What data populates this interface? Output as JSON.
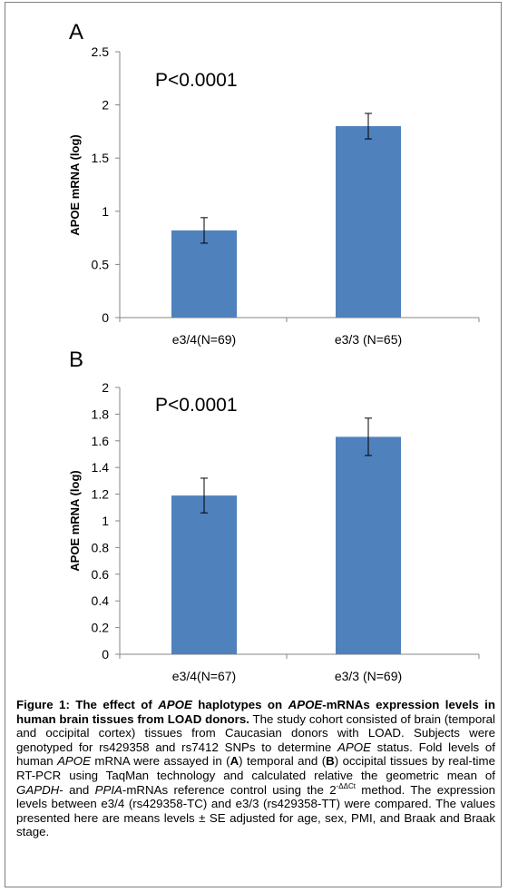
{
  "chart_data": [
    {
      "type": "bar",
      "panel_label": "A",
      "annotation": "P<0.0001",
      "ylabel": "APOE mRNA (log)",
      "xlabel": "",
      "ylim": [
        0,
        2.5
      ],
      "yticks": [
        0,
        0.5,
        1,
        1.5,
        2,
        2.5
      ],
      "ytick_labels": [
        "0",
        "0.5",
        "1",
        "1.5",
        "2",
        "2.5"
      ],
      "categories": [
        "e3/4(N=69)",
        "e3/3 (N=65)"
      ],
      "values": [
        0.82,
        1.8
      ],
      "errors": [
        0.12,
        0.12
      ],
      "bar_color": "#4f81bd",
      "grid": false,
      "legend": "none"
    },
    {
      "type": "bar",
      "panel_label": "B",
      "annotation": "P<0.0001",
      "ylabel": "APOE mRNA (log)",
      "xlabel": "",
      "ylim": [
        0,
        2
      ],
      "yticks": [
        0,
        0.2,
        0.4,
        0.6,
        0.8,
        1,
        1.2,
        1.4,
        1.6,
        1.8,
        2
      ],
      "ytick_labels": [
        "0",
        "0.2",
        "0.4",
        "0.6",
        "0.8",
        "1",
        "1.2",
        "1.4",
        "1.6",
        "1.8",
        "2"
      ],
      "categories": [
        "e3/4(N=67)",
        "e3/3 (N=69)"
      ],
      "values": [
        1.19,
        1.63
      ],
      "errors": [
        0.13,
        0.14
      ],
      "bar_color": "#4f81bd",
      "grid": false,
      "legend": "none"
    }
  ],
  "caption": {
    "title_part1": "Figure 1: The effect of ",
    "title_gene1": "APOE",
    "title_part2": " haplotypes on ",
    "title_gene2": "APOE",
    "title_part3": "-mRNAs expression levels in human brain tissues from LOAD donors.",
    "s1": " The study cohort consisted of brain (temporal and occipital cortex) tissues from Caucasian donors with LOAD. Subjects were genotyped for rs429358 and rs7412 SNPs to determine ",
    "g1": "APOE",
    "s2": " status. Fold levels of human ",
    "g2": "APOE",
    "s3": " mRNA were assayed in (",
    "a": "A",
    "s4": ") temporal and (",
    "b": "B",
    "s5": ") occipital tissues by real-time RT-PCR using TaqMan technology and calculated relative the geometric mean of ",
    "g3": "GAPDH",
    "s6": "- and ",
    "g4": "PPIA",
    "s7": "-mRNAs reference control using the 2",
    "sup": "-ΔΔCt",
    "s8": " method. The expression levels between e3/4 (rs429358-TC) and e3/3 (rs429358-TT) were compared. The values presented here are means levels ± SE adjusted for age, sex, PMI, and Braak and Braak stage."
  }
}
